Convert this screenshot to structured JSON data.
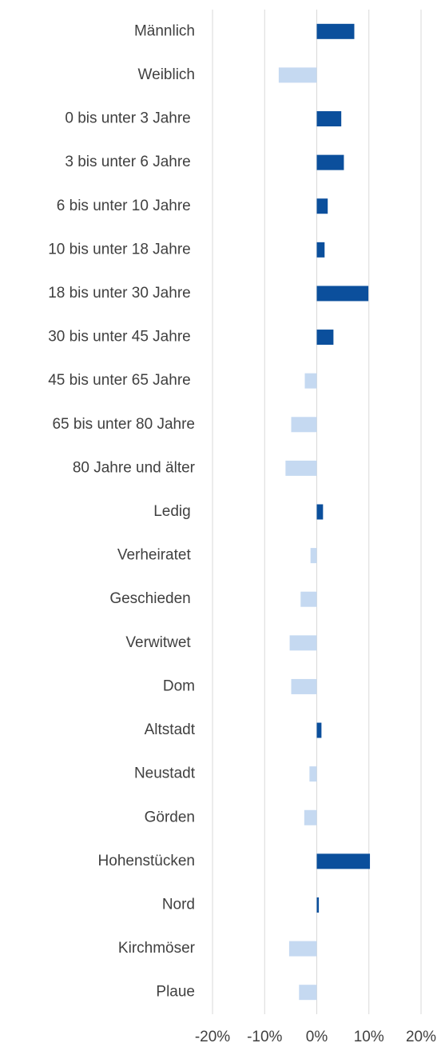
{
  "chart_data": {
    "type": "bar",
    "orientation": "horizontal",
    "categories": [
      "Männlich",
      "Weiblich",
      "0 bis unter 3 Jahre ",
      "3 bis unter 6 Jahre ",
      "6 bis unter 10 Jahre ",
      "10 bis unter 18 Jahre ",
      "18 bis unter 30 Jahre ",
      "30 bis unter 45 Jahre ",
      "45 bis unter 65 Jahre ",
      "65 bis unter 80 Jahre",
      "80 Jahre und älter",
      "Ledig ",
      "Verheiratet ",
      "Geschieden ",
      "Verwitwet ",
      "Dom",
      "Altstadt",
      "Neustadt",
      "Görden",
      "Hohenstücken",
      "Nord",
      "Kirchmöser",
      "Plaue"
    ],
    "values": [
      7.2,
      -7.3,
      4.7,
      5.2,
      2.1,
      1.5,
      9.9,
      3.2,
      -2.3,
      -4.9,
      -6.0,
      1.2,
      -1.2,
      -3.1,
      -5.2,
      -4.9,
      0.9,
      -1.4,
      -2.4,
      10.2,
      0.4,
      -5.3,
      -3.4
    ],
    "colors": {
      "positive": "#0b4f9c",
      "negative": "#c5d9f1"
    },
    "xlim": [
      -20,
      20
    ],
    "xticks": [
      {
        "value": -20,
        "label": "-20%"
      },
      {
        "value": -10,
        "label": "-10%"
      },
      {
        "value": 0,
        "label": "0%"
      },
      {
        "value": 10,
        "label": "10%"
      },
      {
        "value": 20,
        "label": "20%"
      }
    ],
    "grid": true
  }
}
